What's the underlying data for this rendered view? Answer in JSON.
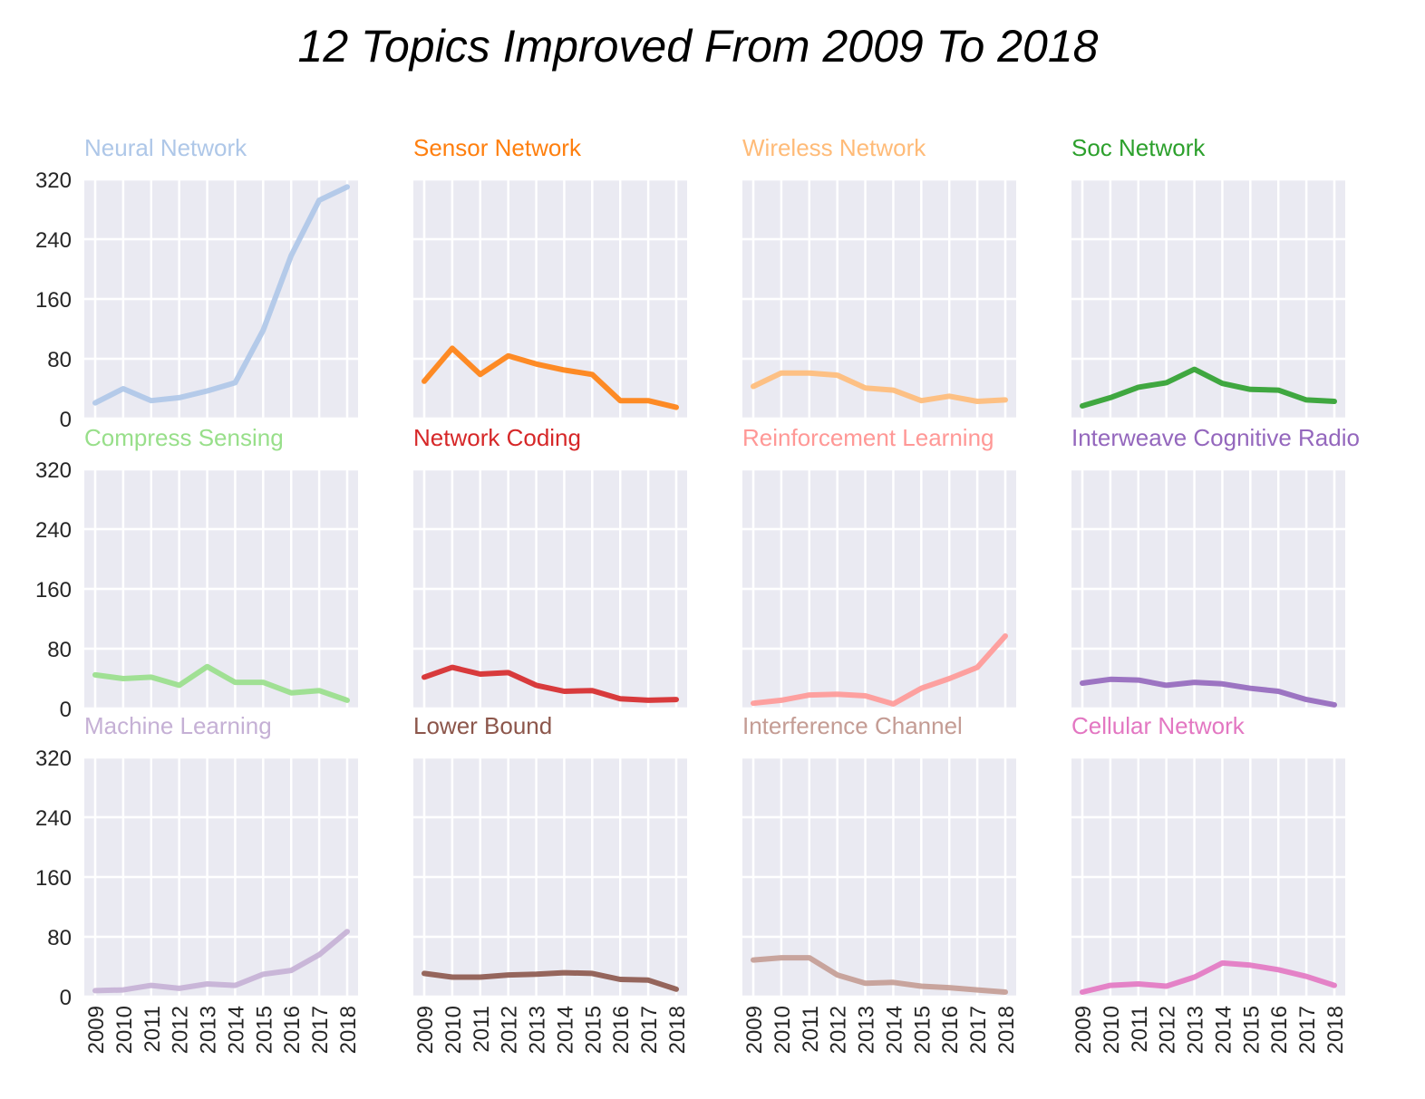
{
  "chart_data": {
    "type": "line",
    "title": "12 Topics Improved From 2009 To 2018",
    "x": [
      "2009",
      "2010",
      "2011",
      "2012",
      "2013",
      "2014",
      "2015",
      "2016",
      "2017",
      "2018"
    ],
    "ylim": [
      0,
      320
    ],
    "yticks": [
      "0",
      "80",
      "160",
      "240",
      "320"
    ],
    "grid": true,
    "panels": [
      {
        "name": "Neural Network",
        "color": "#aec7e8",
        "values": [
          21,
          40,
          24,
          28,
          37,
          48,
          118,
          218,
          292,
          310
        ]
      },
      {
        "name": "Sensor Network",
        "color": "#ff7f0e",
        "values": [
          50,
          94,
          59,
          84,
          73,
          65,
          59,
          24,
          24,
          15
        ]
      },
      {
        "name": "Wireless Network",
        "color": "#ffbb78",
        "values": [
          43,
          61,
          61,
          58,
          41,
          38,
          24,
          30,
          23,
          25
        ]
      },
      {
        "name": "Soc Network",
        "color": "#2ca02c",
        "values": [
          17,
          28,
          42,
          48,
          66,
          47,
          39,
          38,
          25,
          23
        ]
      },
      {
        "name": "Compress Sensing",
        "color": "#98df8a",
        "values": [
          45,
          40,
          42,
          31,
          56,
          35,
          35,
          21,
          24,
          11
        ]
      },
      {
        "name": "Network Coding",
        "color": "#d62728",
        "values": [
          42,
          55,
          46,
          48,
          31,
          23,
          24,
          13,
          11,
          12
        ]
      },
      {
        "name": "Reinforcement Learning",
        "color": "#ff9896",
        "values": [
          7,
          11,
          18,
          19,
          17,
          6,
          27,
          40,
          55,
          97
        ]
      },
      {
        "name": "Interweave Cognitive Radio",
        "color": "#9467bd",
        "values": [
          34,
          39,
          38,
          31,
          35,
          33,
          27,
          23,
          12,
          5
        ]
      },
      {
        "name": "Machine Learning",
        "color": "#c5b0d5",
        "values": [
          8,
          9,
          15,
          11,
          17,
          15,
          30,
          35,
          56,
          87
        ]
      },
      {
        "name": "Lower Bound",
        "color": "#8c564b",
        "values": [
          31,
          26,
          26,
          29,
          30,
          32,
          31,
          23,
          22,
          10
        ]
      },
      {
        "name": "Interference Channel",
        "color": "#c49c94",
        "values": [
          49,
          52,
          52,
          29,
          18,
          19,
          14,
          12,
          9,
          6
        ]
      },
      {
        "name": "Cellular Network",
        "color": "#e377c2",
        "values": [
          6,
          15,
          17,
          14,
          26,
          45,
          42,
          36,
          27,
          15
        ]
      }
    ]
  }
}
